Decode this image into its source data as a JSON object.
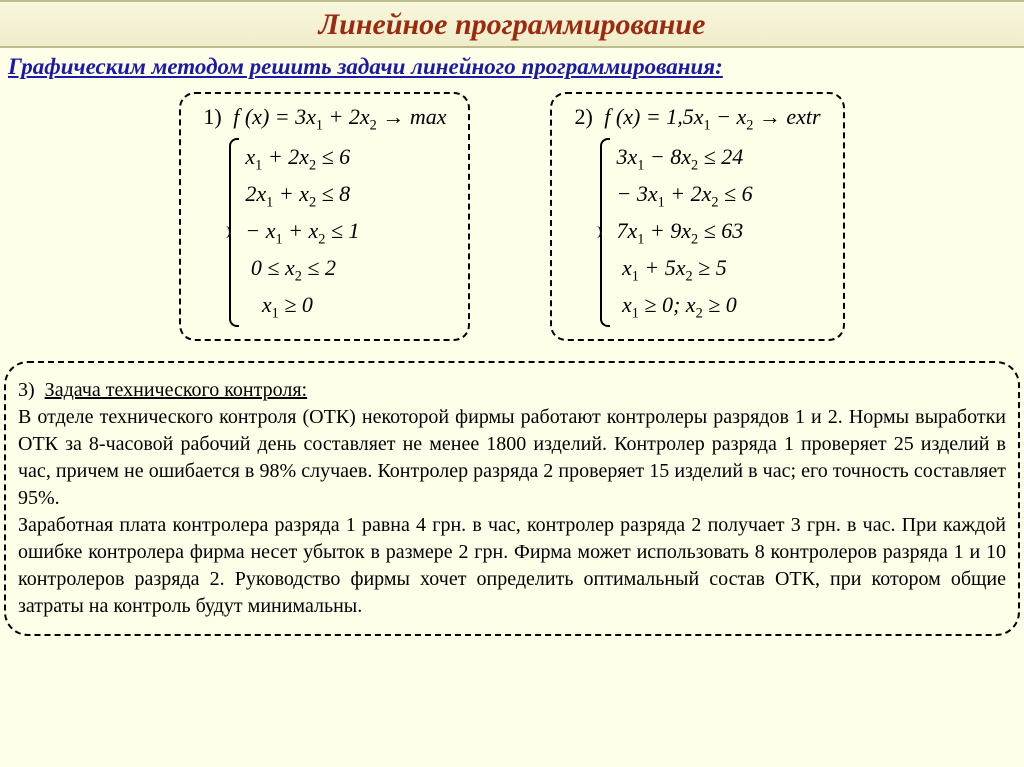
{
  "title": "Линейное программирование",
  "subtitle": "Графическим методом решить задачи линейного программирования:",
  "colors": {
    "page_background": "#fffee8",
    "title_color": "#9c2a0f",
    "title_bg_top": "#f8f7de",
    "title_bg_bottom": "#efedc9",
    "title_border": "#bdbc8e",
    "subtitle_color": "#1a1aa8",
    "text_color": "#000000",
    "dash_border": "#000000"
  },
  "typography": {
    "font_family": "Times New Roman",
    "title_fontsize": 30,
    "subtitle_fontsize": 23,
    "math_fontsize": 22,
    "body_fontsize": 20
  },
  "problem1": {
    "number": "1)",
    "objective": "f (x) = 3x₁ + 2x₂ → max",
    "c1": "x₁ + 2x₂ ≤ 6",
    "c2": "2x₁ + x₂ ≤ 8",
    "c3": "− x₁ + x₂ ≤ 1",
    "c4": "0 ≤ x₂ ≤ 2",
    "c5": "x₁ ≥ 0"
  },
  "problem2": {
    "number": "2)",
    "objective": "f (x) = 1,5x₁ − x₂ → extr",
    "c1": "3x₁ − 8x₂ ≤ 24",
    "c2": "− 3x₁ + 2x₂ ≤ 6",
    "c3": "7x₁ + 9x₂ ≤ 63",
    "c4": "x₁ + 5x₂ ≥ 5",
    "c5": "x₁ ≥ 0; x₂ ≥ 0"
  },
  "problem3": {
    "number": "3)",
    "title": "Задача технического контроля:",
    "p1": "В отделе технического контроля (ОТК) некоторой фирмы работают контролеры разрядов 1 и 2. Нормы выработки ОТК за 8-часовой рабочий день составляет не менее 1800 изделий.",
    "p2": "Контролер разряда 1 проверяет 25 изделий в час, причем не ошибается в 98% случаев. Контролер разряда 2  проверяет 15 изделий в час;  его точность составляет  95%.",
    "p3": "Заработная плата контролера разряда 1 равна 4 грн. в час, контролер разряда 2 получает 3 грн. в час. При каждой ошибке контролера фирма несет убыток в размере 2 грн. Фирма может использовать 8 контролеров разряда 1 и 10 контролеров разряда 2. Руководство фирмы хочет определить оптимальный состав ОТК, при котором общие затраты на контроль будут минимальны."
  }
}
